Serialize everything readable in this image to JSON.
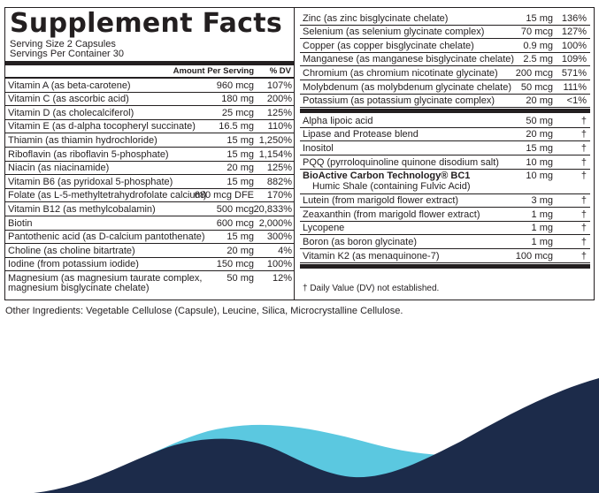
{
  "title": "Supplement Facts",
  "serving_size": "Serving Size 2 Capsules",
  "servings_per_container": "Servings Per Container 30",
  "header": {
    "amount": "Amount Per Serving",
    "dv": "% DV"
  },
  "left_rows": [
    {
      "name": "Vitamin A (as beta-carotene)",
      "amount": "960 mcg",
      "dv": "107%"
    },
    {
      "name": "Vitamin C (as ascorbic acid)",
      "amount": "180 mg",
      "dv": "200%"
    },
    {
      "name": "Vitamin D (as cholecalciferol)",
      "amount": "25 mcg",
      "dv": "125%"
    },
    {
      "name": "Vitamin E (as d-alpha tocopheryl succinate)",
      "amount": "16.5 mg",
      "dv": "110%"
    },
    {
      "name": "Thiamin (as thiamin hydrochloride)",
      "amount": "15 mg",
      "dv": "1,250%"
    },
    {
      "name": "Riboflavin (as riboflavin 5-phosphate)",
      "amount": "15 mg",
      "dv": "1,154%"
    },
    {
      "name": "Niacin (as niacinamide)",
      "amount": "20 mg",
      "dv": "125%"
    },
    {
      "name": "Vitamin B6 (as pyridoxal 5-phosphate)",
      "amount": "15 mg",
      "dv": "882%"
    },
    {
      "name": "Folate (as L-5-methyltetrahydrofolate calcium)",
      "amount": "680 mcg DFE",
      "dv": "170%"
    },
    {
      "name": "Vitamin B12 (as methylcobalamin)",
      "amount": "500 mcg",
      "dv": "20,833%"
    },
    {
      "name": "Biotin",
      "amount": "600 mcg",
      "dv": "2,000%"
    },
    {
      "name": "Pantothenic acid (as D-calcium pantothenate)",
      "amount": "15 mg",
      "dv": "300%"
    },
    {
      "name": "Choline (as choline bitartrate)",
      "amount": "20 mg",
      "dv": "4%"
    },
    {
      "name": "Iodine (from potassium iodide)",
      "amount": "150 mcg",
      "dv": "100%"
    }
  ],
  "magnesium": {
    "line1": "Magnesium (as magnesium taurate complex,",
    "line2": "magnesium bisglycinate chelate)",
    "amount": "50 mg",
    "dv": "12%"
  },
  "right_rows_a": [
    {
      "name": "Zinc (as zinc bisglycinate chelate)",
      "amount": "15 mg",
      "dv": "136%"
    },
    {
      "name": "Selenium (as selenium glycinate complex)",
      "amount": "70 mcg",
      "dv": "127%"
    },
    {
      "name": "Copper (as copper bisglycinate chelate)",
      "amount": "0.9 mg",
      "dv": "100%"
    },
    {
      "name": "Manganese (as manganese bisglycinate chelate)",
      "amount": "2.5 mg",
      "dv": "109%"
    },
    {
      "name": "Chromium (as chromium nicotinate glycinate)",
      "amount": "200 mcg",
      "dv": "571%"
    },
    {
      "name": "Molybdenum (as molybdenum glycinate chelate)",
      "amount": "50 mcg",
      "dv": "111%"
    },
    {
      "name": "Potassium (as potassium glycinate complex)",
      "amount": "20 mg",
      "dv": "<1%"
    }
  ],
  "right_rows_b": [
    {
      "name": "Alpha lipoic acid",
      "amount": "50 mg",
      "dv": "†"
    },
    {
      "name": "Lipase and Protease blend",
      "amount": "20 mg",
      "dv": "†"
    },
    {
      "name": "Inositol",
      "amount": "15 mg",
      "dv": "†"
    },
    {
      "name": "PQQ (pyrroloquinoline quinone disodium salt)",
      "amount": "10 mg",
      "dv": "†"
    }
  ],
  "bioactive": {
    "line1": "BioActive Carbon Technology® BC1",
    "line2": "Humic Shale (containing Fulvic Acid)",
    "amount": "10 mg",
    "dv": "†"
  },
  "right_rows_c": [
    {
      "name": "Lutein (from marigold flower extract)",
      "amount": "3 mg",
      "dv": "†"
    },
    {
      "name": "Zeaxanthin (from marigold flower extract)",
      "amount": "1 mg",
      "dv": "†"
    },
    {
      "name": "Lycopene",
      "amount": "1 mg",
      "dv": "†"
    },
    {
      "name": "Boron (as boron glycinate)",
      "amount": "1 mg",
      "dv": "†"
    },
    {
      "name": "Vitamin K2 (as menaquinone-7)",
      "amount": "100 mcg",
      "dv": "†"
    }
  ],
  "footnote": "† Daily Value (DV) not established.",
  "other_ingredients": "Other Ingredients: Vegetable Cellulose (Capsule), Leucine, Silica, Microcrystalline Cellulose.",
  "colors": {
    "text": "#231f20",
    "wave_dark": "#1c2b4a",
    "wave_light": "#5bc8e0"
  }
}
